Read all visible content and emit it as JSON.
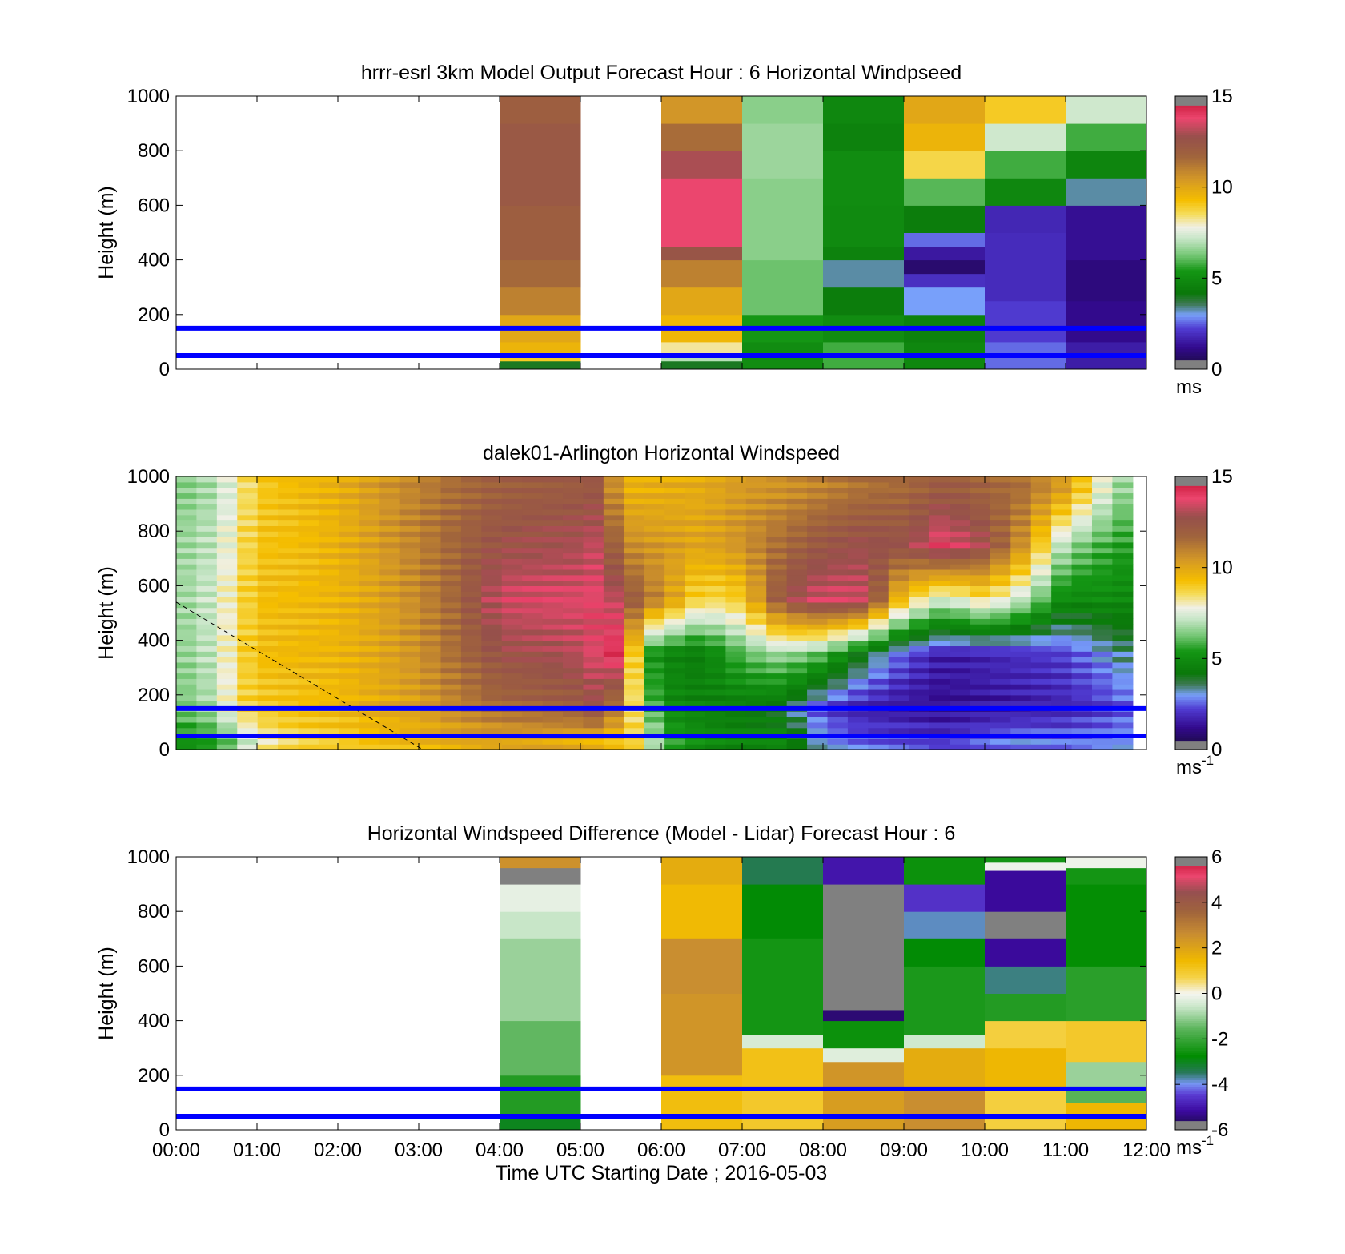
{
  "chart_data": [
    {
      "type": "heatmap",
      "title": "hrrr-esrl 3km Model Output   Forecast Hour : 6 Horizontal Windpseed",
      "ylabel": "Height (m)",
      "xlabel": "",
      "ylim": [
        0,
        1000
      ],
      "xlim": [
        0,
        12
      ],
      "yticks": [
        "0",
        "200",
        "400",
        "600",
        "800",
        "1000"
      ],
      "xticks": [],
      "colorbar": {
        "min": 0,
        "max": 15,
        "ticks": [
          "0",
          "5",
          "10",
          "15"
        ],
        "unit": "ms",
        "unit_sup": "",
        "colormap": "wind"
      },
      "reference_heights": [
        50,
        150
      ],
      "columns": [
        {
          "x0": 4,
          "x1": 5,
          "cells": [
            [
              0,
              30,
              4.0
            ],
            [
              30,
              60,
              9.0
            ],
            [
              60,
              100,
              9.6
            ],
            [
              100,
              200,
              10.0
            ],
            [
              200,
              300,
              11.0
            ],
            [
              300,
              400,
              11.6
            ],
            [
              400,
              600,
              12.0
            ],
            [
              600,
              900,
              12.3
            ],
            [
              900,
              1000,
              12.0
            ]
          ]
        },
        {
          "x0": 6,
          "x1": 7,
          "cells": [
            [
              0,
              30,
              4.0
            ],
            [
              30,
              60,
              7.0
            ],
            [
              60,
              100,
              8.2
            ],
            [
              100,
              200,
              9.5
            ],
            [
              200,
              300,
              10.0
            ],
            [
              300,
              400,
              11.0
            ],
            [
              400,
              450,
              12.5
            ],
            [
              450,
              700,
              13.8
            ],
            [
              700,
              800,
              13.0
            ],
            [
              800,
              900,
              11.5
            ],
            [
              900,
              1000,
              10.5
            ]
          ]
        },
        {
          "x0": 7,
          "x1": 8,
          "cells": [
            [
              0,
              100,
              5.0
            ],
            [
              100,
              200,
              5.4
            ],
            [
              200,
              400,
              6.2
            ],
            [
              400,
              700,
              6.5
            ],
            [
              700,
              900,
              6.7
            ],
            [
              900,
              1000,
              6.5
            ]
          ]
        },
        {
          "x0": 8,
          "x1": 9,
          "cells": [
            [
              0,
              100,
              5.8
            ],
            [
              100,
              200,
              5.0
            ],
            [
              200,
              300,
              4.4
            ],
            [
              300,
              400,
              3.3
            ],
            [
              400,
              450,
              4.6
            ],
            [
              450,
              600,
              4.9
            ],
            [
              600,
              800,
              5.0
            ],
            [
              800,
              900,
              4.6
            ],
            [
              900,
              1000,
              4.8
            ]
          ]
        },
        {
          "x0": 9,
          "x1": 10,
          "cells": [
            [
              0,
              100,
              4.8
            ],
            [
              100,
              200,
              4.6
            ],
            [
              200,
              300,
              3.0
            ],
            [
              300,
              350,
              2.0
            ],
            [
              350,
              400,
              0.8
            ],
            [
              400,
              450,
              1.5
            ],
            [
              450,
              500,
              2.6
            ],
            [
              500,
              600,
              4.4
            ],
            [
              600,
              700,
              6.0
            ],
            [
              700,
              800,
              8.7
            ],
            [
              800,
              900,
              9.6
            ],
            [
              900,
              1000,
              10.0
            ]
          ]
        },
        {
          "x0": 10,
          "x1": 11,
          "cells": [
            [
              0,
              100,
              2.6
            ],
            [
              100,
              250,
              2.2
            ],
            [
              250,
              500,
              1.9
            ],
            [
              500,
              600,
              1.8
            ],
            [
              600,
              700,
              4.8
            ],
            [
              700,
              800,
              5.8
            ],
            [
              800,
              900,
              7.3
            ],
            [
              900,
              1000,
              9.0
            ]
          ]
        },
        {
          "x0": 11,
          "x1": 12,
          "cells": [
            [
              0,
              100,
              1.6
            ],
            [
              100,
              250,
              1.2
            ],
            [
              250,
              400,
              1.0
            ],
            [
              400,
              600,
              1.3
            ],
            [
              600,
              700,
              3.3
            ],
            [
              700,
              800,
              4.7
            ],
            [
              800,
              900,
              5.8
            ],
            [
              900,
              1000,
              7.3
            ]
          ]
        }
      ]
    },
    {
      "type": "heatmap",
      "title": "dalek01-Arlington  Horizontal Windspeed",
      "ylabel": "Height (m)",
      "xlabel": "",
      "ylim": [
        0,
        1000
      ],
      "xlim": [
        0,
        12
      ],
      "yticks": [
        "0",
        "200",
        "400",
        "600",
        "800",
        "1000"
      ],
      "xticks": [],
      "colorbar": {
        "min": 0,
        "max": 15,
        "ticks": [
          "0",
          "5",
          "10",
          "15"
        ],
        "unit": "ms",
        "unit_sup": "-1",
        "colormap": "wind"
      },
      "reference_heights": [
        50,
        150
      ],
      "data_end_x": 11.83,
      "dashed_line": [
        [
          0,
          540
        ],
        [
          3.05,
          0
        ]
      ],
      "time_profiles": [
        {
          "x": 0.0,
          "values": [
            5.0,
            6.2,
            6.5,
            6.7,
            6.6,
            6.4
          ]
        },
        {
          "x": 0.25,
          "values": [
            5.2,
            6.6,
            6.8,
            6.9,
            6.9,
            6.6
          ]
        },
        {
          "x": 0.5,
          "values": [
            5.5,
            7.0,
            7.3,
            7.5,
            7.2,
            7.0
          ]
        },
        {
          "x": 0.75,
          "values": [
            6.5,
            8.6,
            8.5,
            8.4,
            8.2,
            8.0
          ]
        },
        {
          "x": 1.0,
          "values": [
            8.0,
            9.0,
            9.3,
            9.3,
            9.2,
            9.0
          ]
        },
        {
          "x": 1.5,
          "values": [
            8.8,
            9.2,
            9.5,
            9.4,
            9.3,
            9.4
          ]
        },
        {
          "x": 2.0,
          "values": [
            9.0,
            9.4,
            9.6,
            9.6,
            9.7,
            9.7
          ]
        },
        {
          "x": 2.5,
          "values": [
            9.3,
            9.8,
            10.0,
            10.1,
            10.3,
            10.4
          ]
        },
        {
          "x": 3.0,
          "values": [
            9.5,
            10.2,
            10.6,
            10.8,
            11.0,
            11.0
          ]
        },
        {
          "x": 3.5,
          "values": [
            9.8,
            11.0,
            11.6,
            11.8,
            11.8,
            11.6
          ]
        },
        {
          "x": 4.0,
          "values": [
            10.0,
            11.6,
            12.6,
            13.5,
            12.6,
            12.0
          ]
        },
        {
          "x": 4.5,
          "values": [
            10.0,
            11.8,
            12.8,
            13.6,
            12.8,
            12.1
          ]
        },
        {
          "x": 5.0,
          "values": [
            9.8,
            12.0,
            13.2,
            13.6,
            13.0,
            12.2
          ]
        },
        {
          "x": 5.25,
          "values": [
            9.6,
            12.8,
            13.8,
            13.8,
            13.4,
            12.4
          ]
        },
        {
          "x": 5.5,
          "values": [
            9.2,
            10.2,
            14.5,
            13.0,
            11.0,
            9.8
          ]
        },
        {
          "x": 5.75,
          "values": [
            8.8,
            7.5,
            6.0,
            11.5,
            10.5,
            9.6
          ]
        },
        {
          "x": 6.0,
          "values": [
            6.0,
            5.0,
            4.8,
            10.8,
            10.4,
            9.8
          ]
        },
        {
          "x": 6.5,
          "values": [
            5.0,
            4.6,
            4.4,
            8.5,
            10.0,
            9.9
          ]
        },
        {
          "x": 7.0,
          "values": [
            4.6,
            4.4,
            6.0,
            9.0,
            10.6,
            10.4
          ]
        },
        {
          "x": 7.5,
          "values": [
            4.8,
            4.0,
            6.8,
            12.5,
            11.6,
            10.6
          ]
        },
        {
          "x": 8.0,
          "values": [
            3.0,
            2.2,
            6.0,
            13.6,
            12.4,
            11.0
          ]
        },
        {
          "x": 8.5,
          "values": [
            2.6,
            1.6,
            4.0,
            13.4,
            12.8,
            11.4
          ]
        },
        {
          "x": 9.0,
          "values": [
            2.4,
            1.4,
            2.4,
            9.0,
            12.6,
            11.6
          ]
        },
        {
          "x": 9.5,
          "values": [
            2.2,
            1.2,
            1.6,
            7.2,
            14.0,
            12.2
          ]
        },
        {
          "x": 10.0,
          "values": [
            2.6,
            1.4,
            1.8,
            8.5,
            12.8,
            11.8
          ]
        },
        {
          "x": 10.5,
          "values": [
            2.8,
            1.6,
            2.0,
            7.0,
            10.4,
            11.4
          ]
        },
        {
          "x": 11.0,
          "values": [
            2.6,
            1.8,
            2.2,
            4.8,
            6.8,
            10.2
          ]
        },
        {
          "x": 11.5,
          "values": [
            2.8,
            2.2,
            3.0,
            5.0,
            5.8,
            7.4
          ]
        },
        {
          "x": 11.83,
          "values": [
            3.0,
            2.6,
            3.6,
            4.8,
            5.4,
            6.2
          ]
        }
      ],
      "profile_heights": [
        30,
        150,
        350,
        550,
        750,
        950
      ]
    },
    {
      "type": "heatmap",
      "title": "Horizontal Windspeed Difference (Model - Lidar) Forecast Hour : 6",
      "ylabel": "Height (m)",
      "xlabel": "Time UTC  Starting Date ; 2016-05-03",
      "ylim": [
        0,
        1000
      ],
      "xlim": [
        0,
        12
      ],
      "yticks": [
        "0",
        "200",
        "400",
        "600",
        "800",
        "1000"
      ],
      "xticks": [
        "00:00",
        "01:00",
        "02:00",
        "03:00",
        "04:00",
        "05:00",
        "06:00",
        "07:00",
        "08:00",
        "09:00",
        "10:00",
        "11:00",
        "12:00"
      ],
      "colorbar": {
        "min": -6,
        "max": 6,
        "ticks": [
          "-6",
          "-4",
          "-2",
          "0",
          "2",
          "4",
          "6"
        ],
        "unit": "ms",
        "unit_sup": "-1",
        "colormap": "diff"
      },
      "reference_heights": [
        50,
        150
      ],
      "columns": [
        {
          "x0": 4,
          "x1": 5,
          "cells": [
            [
              0,
              50,
              -3.0
            ],
            [
              50,
              200,
              -2.3
            ],
            [
              200,
              400,
              -1.5
            ],
            [
              400,
              700,
              -1.0
            ],
            [
              700,
              800,
              -0.6
            ],
            [
              800,
              900,
              -0.2
            ],
            [
              900,
              960,
              -6.3
            ],
            [
              960,
              1000,
              2.5
            ]
          ]
        },
        {
          "x0": 6,
          "x1": 7,
          "cells": [
            [
              0,
              200,
              1.3
            ],
            [
              200,
              500,
              2.4
            ],
            [
              500,
              700,
              2.6
            ],
            [
              700,
              900,
              1.4
            ],
            [
              900,
              1000,
              1.8
            ]
          ]
        },
        {
          "x0": 7,
          "x1": 8,
          "cells": [
            [
              0,
              150,
              1.0
            ],
            [
              150,
              300,
              1.2
            ],
            [
              300,
              350,
              -0.4
            ],
            [
              350,
              700,
              -2.5
            ],
            [
              700,
              900,
              -2.8
            ],
            [
              900,
              1000,
              -3.4
            ]
          ]
        },
        {
          "x0": 8,
          "x1": 9,
          "cells": [
            [
              0,
              150,
              2.2
            ],
            [
              150,
              250,
              2.4
            ],
            [
              250,
              300,
              -0.3
            ],
            [
              300,
              400,
              -2.6
            ],
            [
              400,
              440,
              -5.5
            ],
            [
              440,
              900,
              -6.3
            ],
            [
              900,
              1000,
              -5.0
            ]
          ]
        },
        {
          "x0": 9,
          "x1": 10,
          "cells": [
            [
              0,
              150,
              2.6
            ],
            [
              150,
              300,
              1.8
            ],
            [
              300,
              350,
              -0.5
            ],
            [
              350,
              600,
              -2.4
            ],
            [
              600,
              700,
              -2.8
            ],
            [
              700,
              800,
              -3.8
            ],
            [
              800,
              900,
              -4.6
            ],
            [
              900,
              1000,
              -2.6
            ]
          ]
        },
        {
          "x0": 10,
          "x1": 11,
          "cells": [
            [
              0,
              150,
              0.8
            ],
            [
              150,
              300,
              1.5
            ],
            [
              300,
              400,
              0.8
            ],
            [
              400,
              500,
              -2.3
            ],
            [
              500,
              600,
              -3.6
            ],
            [
              600,
              700,
              -5.2
            ],
            [
              700,
              800,
              -6.3
            ],
            [
              800,
              950,
              -5.2
            ],
            [
              950,
              980,
              -0.1
            ],
            [
              980,
              1000,
              -2.5
            ]
          ]
        },
        {
          "x0": 11,
          "x1": 12,
          "cells": [
            [
              0,
              100,
              1.5
            ],
            [
              100,
              150,
              -1.6
            ],
            [
              150,
              250,
              -1.0
            ],
            [
              250,
              400,
              1.0
            ],
            [
              400,
              600,
              -2.2
            ],
            [
              600,
              900,
              -2.7
            ],
            [
              900,
              960,
              -2.5
            ],
            [
              960,
              1000,
              -0.1
            ]
          ]
        }
      ]
    }
  ]
}
